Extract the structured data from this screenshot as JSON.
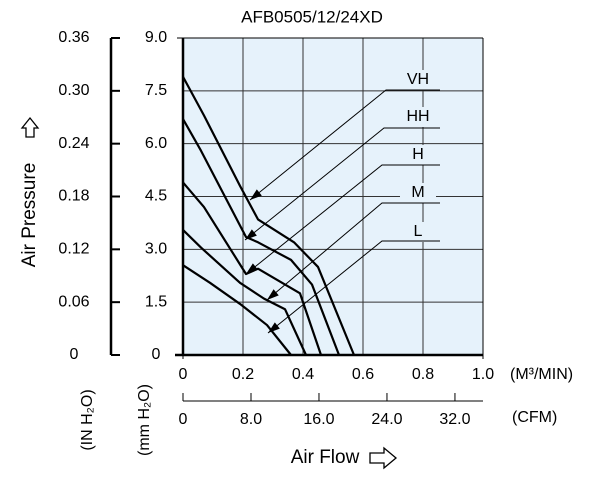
{
  "chart_data": {
    "type": "line",
    "title": "AFB0505/12/24XD",
    "xlabel": "Air Flow",
    "ylabel": "Air Pressure",
    "x_unit": "(M³/MIN)",
    "x2_unit": "(CFM)",
    "y_unit": "(mm H₂O)",
    "y2_unit": "(IN H₂O)",
    "xlim": [
      0,
      1
    ],
    "xticks": [
      0,
      0.2,
      0.4,
      0.6,
      0.8,
      {
        "value": 1,
        "label": "1.0"
      }
    ],
    "x2lim": [
      0,
      35.3
    ],
    "x2ticks": [
      0,
      {
        "value": 8,
        "label": "8.0"
      },
      {
        "value": 16,
        "label": "16.0"
      },
      {
        "value": 24,
        "label": "24.0"
      },
      {
        "value": 32,
        "label": "32.0"
      }
    ],
    "ylim": [
      0,
      9
    ],
    "yticks": [
      0,
      1.5,
      {
        "value": 3,
        "label": "3.0"
      },
      4.5,
      {
        "value": 6,
        "label": "6.0"
      },
      7.5,
      {
        "value": 9,
        "label": "9.0"
      }
    ],
    "y2lim": [
      0,
      0.36
    ],
    "y2ticks": [
      0,
      0.06,
      0.12,
      0.18,
      0.24,
      {
        "value": 0.3,
        "label": "0.30"
      },
      0.36
    ],
    "grid": true,
    "background": "#e6f2fb",
    "series": [
      {
        "name": "VH",
        "color": "#000000",
        "x": [
          0,
          0.07,
          0.19,
          0.25,
          0.37,
          0.45,
          0.57
        ],
        "values": [
          7.9,
          6.8,
          4.8,
          3.85,
          3.2,
          2.5,
          0
        ]
      },
      {
        "name": "HH",
        "color": "#000000",
        "x": [
          0,
          0.06,
          0.21,
          0.25,
          0.36,
          0.43,
          0.52
        ],
        "values": [
          6.7,
          5.8,
          3.35,
          3.2,
          2.7,
          2.0,
          0
        ]
      },
      {
        "name": "H",
        "color": "#000000",
        "x": [
          0,
          0.07,
          0.21,
          0.25,
          0.39,
          0.46
        ],
        "values": [
          4.9,
          4.2,
          2.3,
          2.45,
          1.75,
          0
        ]
      },
      {
        "name": "M",
        "color": "#000000",
        "x": [
          0,
          0.06,
          0.19,
          0.27,
          0.34,
          0.41
        ],
        "values": [
          3.55,
          3.05,
          2.05,
          1.6,
          1.3,
          0
        ]
      },
      {
        "name": "L",
        "color": "#000000",
        "x": [
          0,
          0.09,
          0.19,
          0.28,
          0.36
        ],
        "values": [
          2.55,
          2.05,
          1.45,
          0.85,
          0
        ]
      }
    ]
  }
}
